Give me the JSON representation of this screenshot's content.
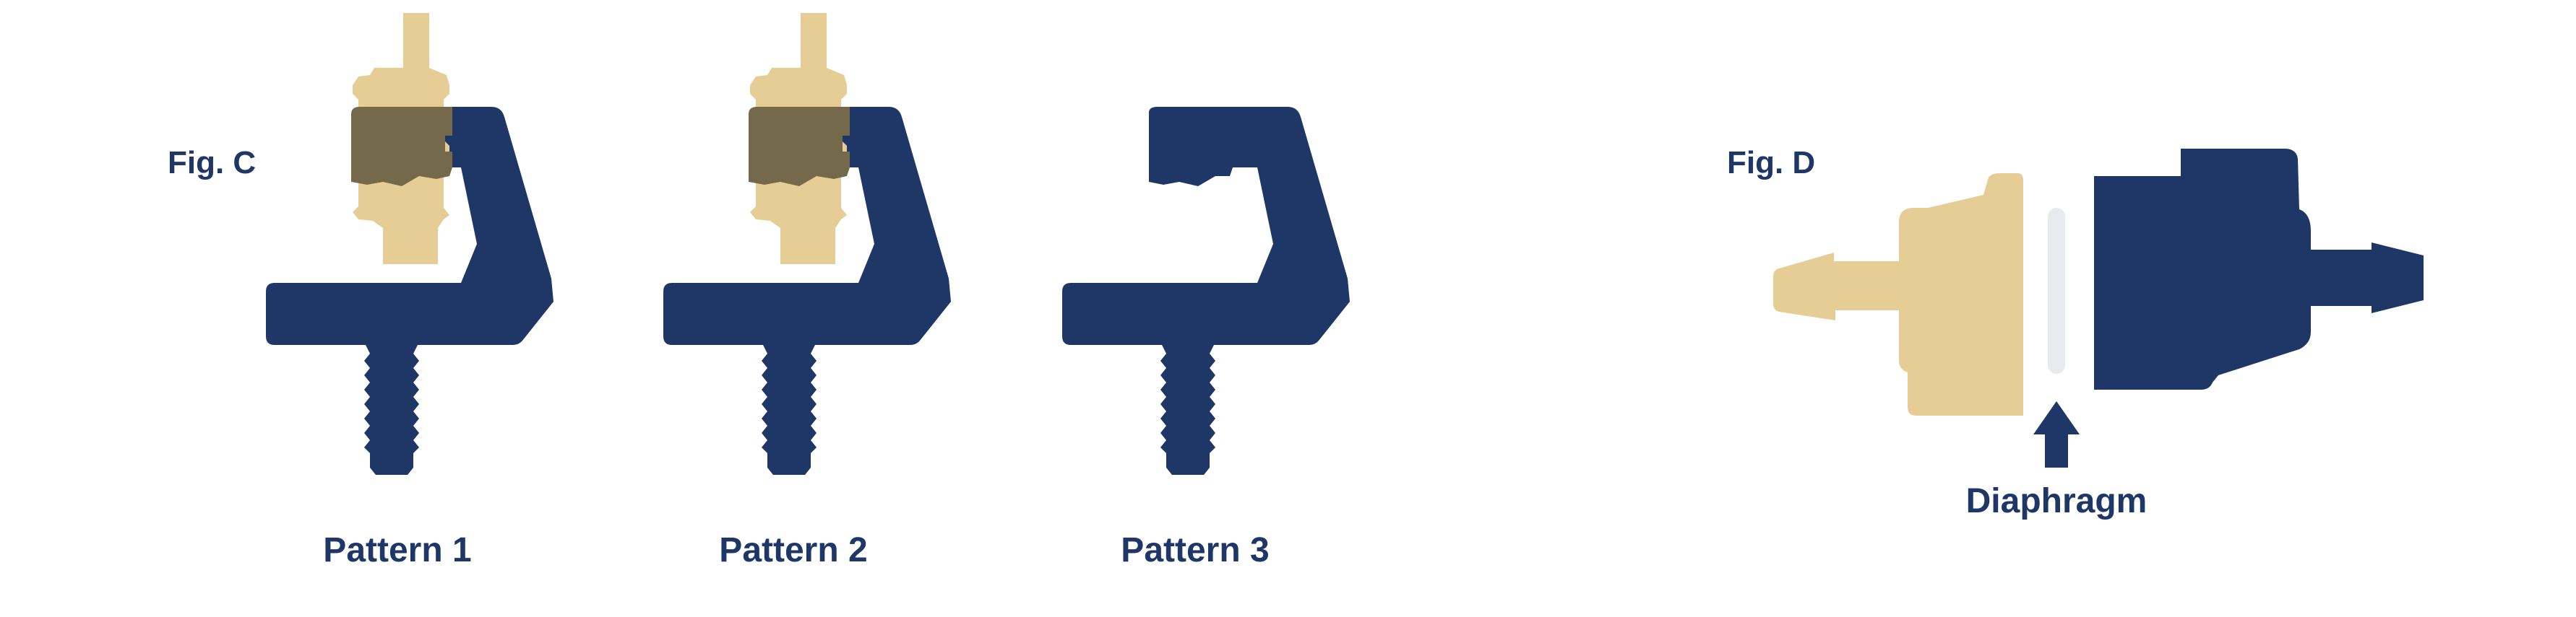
{
  "colors": {
    "navy": "#1e3766",
    "tan": "#e5cd95",
    "overlap": "#74694a",
    "diaphragm": "#e8eaee",
    "background": "#ffffff"
  },
  "figure_c": {
    "label": "Fig. C",
    "patterns": [
      {
        "caption": "Pattern 1",
        "has_fitting": true,
        "fitting_side": "left"
      },
      {
        "caption": "Pattern 2",
        "has_fitting": true,
        "fitting_side": "left"
      },
      {
        "caption": "Pattern 3",
        "has_fitting": false
      }
    ]
  },
  "figure_d": {
    "label": "Fig. D",
    "diaphragm_label": "Diaphragm",
    "pointer_icon": "arrow-up-icon"
  }
}
